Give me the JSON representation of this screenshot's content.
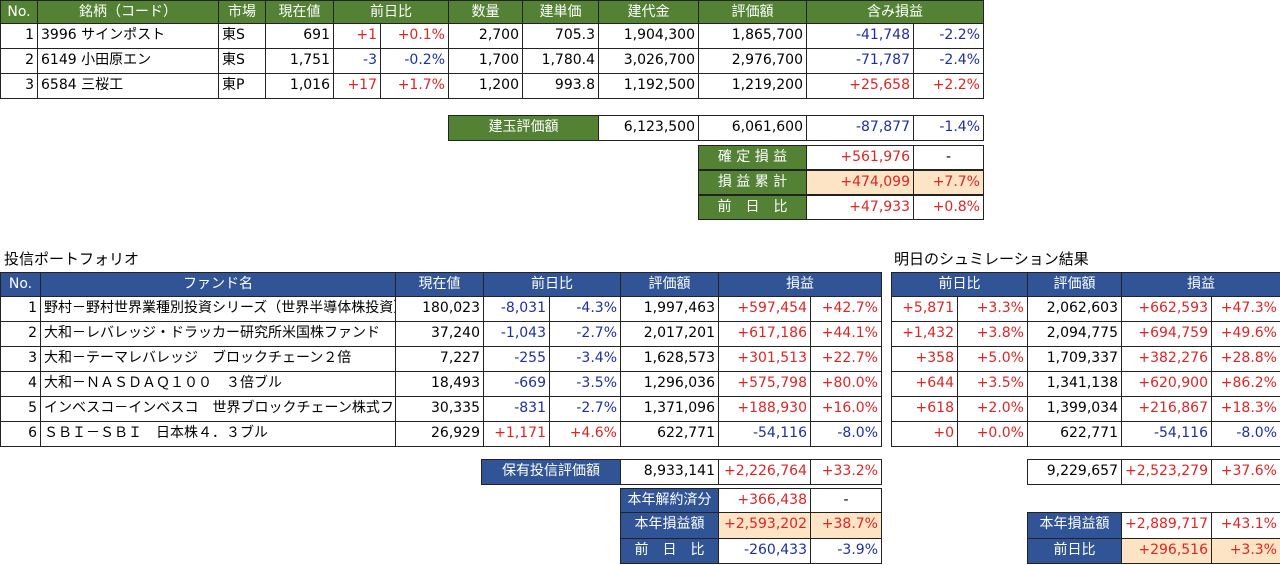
{
  "stocks": {
    "header": [
      "No.",
      "銘柄（コード）",
      "市場",
      "現在値",
      "前日比",
      "数量",
      "建単価",
      "建代金",
      "評価額",
      "含み損益"
    ],
    "rows": [
      [
        "1",
        "3996 サインポスト",
        "東S",
        "691",
        "+1",
        "+0.1%",
        "2,700",
        "705.3",
        "1,904,300",
        "1,865,700",
        "-41,748",
        "-2.2%"
      ],
      [
        "2",
        "6149 小田原エン",
        "東S",
        "1,751",
        "-3",
        "-0.2%",
        "1,700",
        "1,780.4",
        "3,026,700",
        "2,976,700",
        "-71,787",
        "-2.4%"
      ],
      [
        "3",
        "6584 三桜工",
        "東P",
        "1,016",
        "+17",
        "+1.7%",
        "1,200",
        "993.8",
        "1,192,500",
        "1,219,200",
        "+25,658",
        "+2.2%"
      ]
    ]
  },
  "stock_summary": {
    "label": "建玉評価額",
    "values": [
      "6,123,500",
      "6,061,600",
      "-87,877",
      "-1.4%"
    ]
  },
  "stock_totals": [
    {
      "label": "確 定 損 益",
      "values": [
        "+561,976",
        "-"
      ]
    },
    {
      "label": "損 益 累 計",
      "values": [
        "+474,099",
        "+7.7%"
      ]
    },
    {
      "label": "前　日　比",
      "values": [
        "+47,933",
        "+0.8%"
      ]
    }
  ],
  "funds": {
    "title": "投信ポートフォリオ",
    "header": [
      "No.",
      "ファンド名",
      "現在値",
      "前日比",
      "評価額",
      "損益"
    ],
    "rows": [
      [
        "1",
        "野村－野村世界業種別投資シリーズ（世界半導体株投資）",
        "180,023",
        "-8,031",
        "-4.3%",
        "1,997,463",
        "+597,454",
        "+42.7%"
      ],
      [
        "2",
        "大和－レバレッジ・ドラッカー研究所米国株ファンド",
        "37,240",
        "-1,043",
        "-2.7%",
        "2,017,201",
        "+617,186",
        "+44.1%"
      ],
      [
        "3",
        "大和－テーマレバレッジ　ブロックチェーン２倍",
        "7,227",
        "-255",
        "-3.4%",
        "1,628,573",
        "+301,513",
        "+22.7%"
      ],
      [
        "4",
        "大和－ＮＡＳＤＡＱ１００　３倍ブル",
        "18,493",
        "-669",
        "-3.5%",
        "1,296,036",
        "+575,798",
        "+80.0%"
      ],
      [
        "5",
        "インベスコ－インベスコ　世界ブロックチェーン株式ファン",
        "30,335",
        "-831",
        "-2.7%",
        "1,371,096",
        "+188,930",
        "+16.0%"
      ],
      [
        "6",
        "ＳＢＩ－ＳＢＩ　日本株４．３ブル",
        "26,929",
        "+1,171",
        "+4.6%",
        "622,771",
        "-54,116",
        "-8.0%"
      ]
    ]
  },
  "simulation": {
    "title": "明日のシュミレーション結果",
    "header": [
      "前日比",
      "評価額",
      "損益"
    ],
    "rows": [
      [
        "+5,871",
        "+3.3%",
        "2,062,603",
        "+662,593",
        "+47.3%"
      ],
      [
        "+1,432",
        "+3.8%",
        "2,094,775",
        "+694,759",
        "+49.6%"
      ],
      [
        "+358",
        "+5.0%",
        "1,709,337",
        "+382,276",
        "+28.8%"
      ],
      [
        "+644",
        "+3.5%",
        "1,341,138",
        "+620,900",
        "+86.2%"
      ],
      [
        "+618",
        "+2.0%",
        "1,399,034",
        "+216,867",
        "+18.3%"
      ],
      [
        "+0",
        "+0.0%",
        "622,771",
        "-54,116",
        "-8.0%"
      ]
    ]
  },
  "fund_summary": {
    "label": "保有投信評価額",
    "values": [
      "8,933,141",
      "+2,226,764",
      "+33.2%"
    ]
  },
  "fund_totals": [
    {
      "label": "本年解約済分",
      "values": [
        "+366,438",
        "-"
      ]
    },
    {
      "label": "本年損益額",
      "values": [
        "+2,593,202",
        "+38.7%"
      ]
    },
    {
      "label": "前　日　比",
      "values": [
        "-260,433",
        "-3.9%"
      ]
    }
  ],
  "simulation_summary": {
    "values": [
      "9,229,657",
      "+2,523,279",
      "+37.6%"
    ]
  },
  "simulation_totals": [
    {
      "label": "本年損益額",
      "values": [
        "+2,889,717",
        "+43.1%"
      ]
    },
    {
      "label": "前日比",
      "values": [
        "+296,516",
        "+3.3%"
      ]
    }
  ]
}
